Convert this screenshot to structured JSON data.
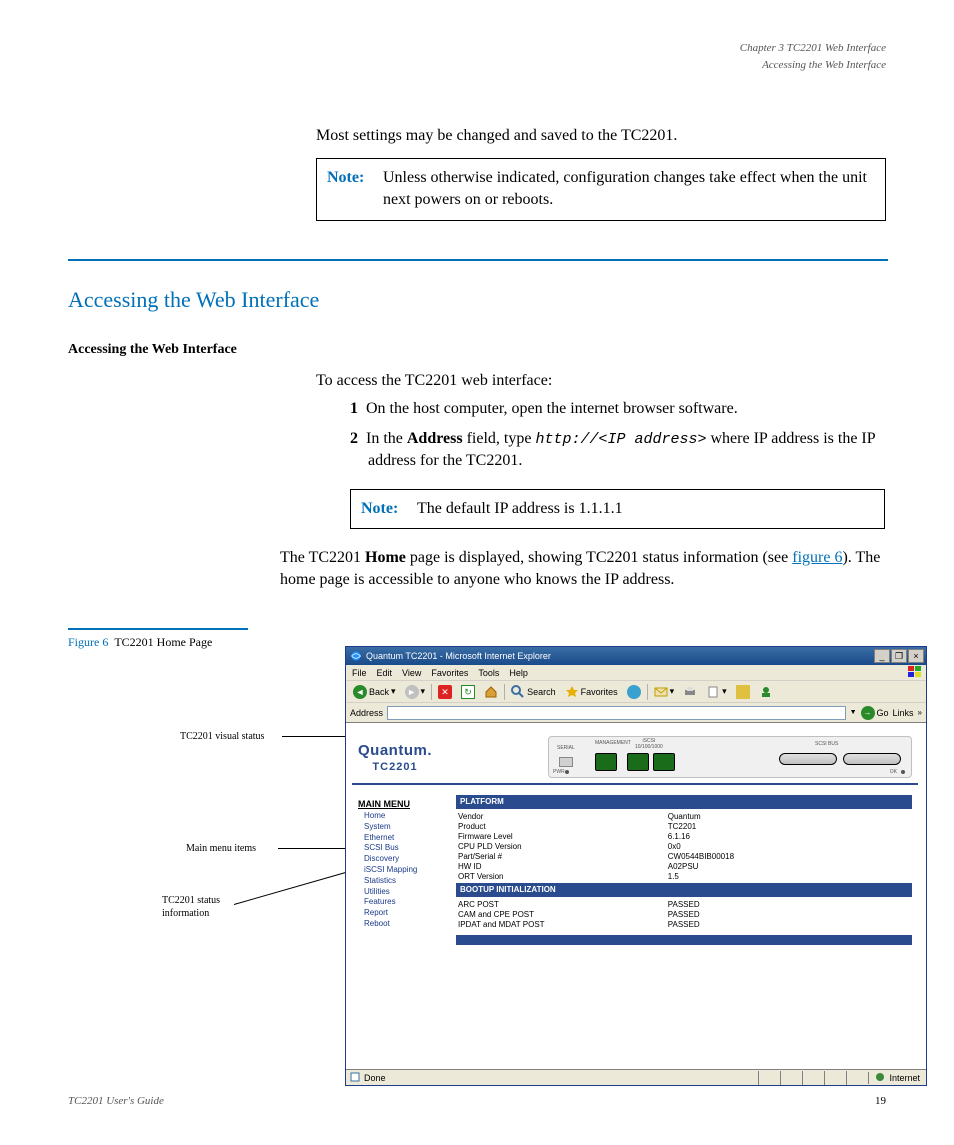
{
  "header": {
    "chapter": "Chapter 3  TC2201 Web Interface",
    "sub": "Accessing the Web Interface"
  },
  "p1": "Most settings may be changed and saved to the TC2201.",
  "note1": {
    "label": "Note:",
    "text": "Unless otherwise indicated, configuration changes take effect when the unit next powers on or reboots."
  },
  "section_title": "Accessing the Web Interface",
  "section_side": "Accessing the Web Interface",
  "p2": "To access the TC2201 web interface:",
  "step1": {
    "n": "1",
    "text": "On the host computer, open the internet browser software."
  },
  "step2": {
    "n": "2",
    "pre": "In the ",
    "bold1": "Address",
    "mid": " field, type ",
    "mono": "http://<IP address>",
    "post": " where IP address is the IP address for the TC2201."
  },
  "note2": {
    "label": "Note:",
    "text": "The default IP address is 1.1.1.1"
  },
  "p3": {
    "pre": "The TC2201 ",
    "bold": "Home",
    "mid": " page is displayed, showing TC2201 status information (see ",
    "link": "figure 6",
    "post": "). The home page is accessible to anyone who knows the IP address."
  },
  "figure_caption": {
    "num": "Figure 6",
    "title": "TC2201 Home Page"
  },
  "annotations": {
    "a1": "TC2201 visual status",
    "a2": "Main menu items",
    "a3": "TC2201 status information"
  },
  "ie": {
    "title": "Quantum TC2201 - Microsoft Internet Explorer",
    "menubar": [
      "File",
      "Edit",
      "View",
      "Favorites",
      "Tools",
      "Help"
    ],
    "toolbar": {
      "back": "Back",
      "search": "Search",
      "favorites": "Favorites"
    },
    "address_label": "Address",
    "go_label": "Go",
    "links_label": "Links",
    "status": {
      "done": "Done",
      "zone": "Internet"
    }
  },
  "quantum": {
    "logo1": "Quantum.",
    "logo2": "TC2201",
    "device_labels": {
      "serial": "SERIAL",
      "mgmt": "MANAGEMENT",
      "iscsi": "iSCSI\n10/100/1000",
      "scsi": "SCSI BUS",
      "pwr": "PWR",
      "ok": "OK"
    },
    "main_menu_label": "MAIN MENU",
    "menu_items": [
      "Home",
      "System",
      "Ethernet",
      "SCSI Bus",
      "Discovery",
      "iSCSI Mapping",
      "Statistics",
      "Utilities",
      "Features",
      "Report",
      "Reboot"
    ],
    "platform_title": "PLATFORM",
    "platform_rows": [
      [
        "Vendor",
        "Quantum"
      ],
      [
        "Product",
        "TC2201"
      ],
      [
        "Firmware Level",
        "6.1.16"
      ],
      [
        "CPU PLD Version",
        "0x0"
      ],
      [
        "Part/Serial #",
        "CW0544BIB00018"
      ],
      [
        "HW ID",
        "A02PSU"
      ],
      [
        "ORT Version",
        "1.5"
      ]
    ],
    "bootup_title": "BOOTUP INITIALIZATION",
    "bootup_rows": [
      [
        "ARC POST",
        "PASSED"
      ],
      [
        "CAM and CPE POST",
        "PASSED"
      ],
      [
        "IPDAT and MDAT POST",
        "PASSED"
      ]
    ]
  },
  "footer": {
    "left": "TC2201 User's Guide",
    "page": "19"
  }
}
